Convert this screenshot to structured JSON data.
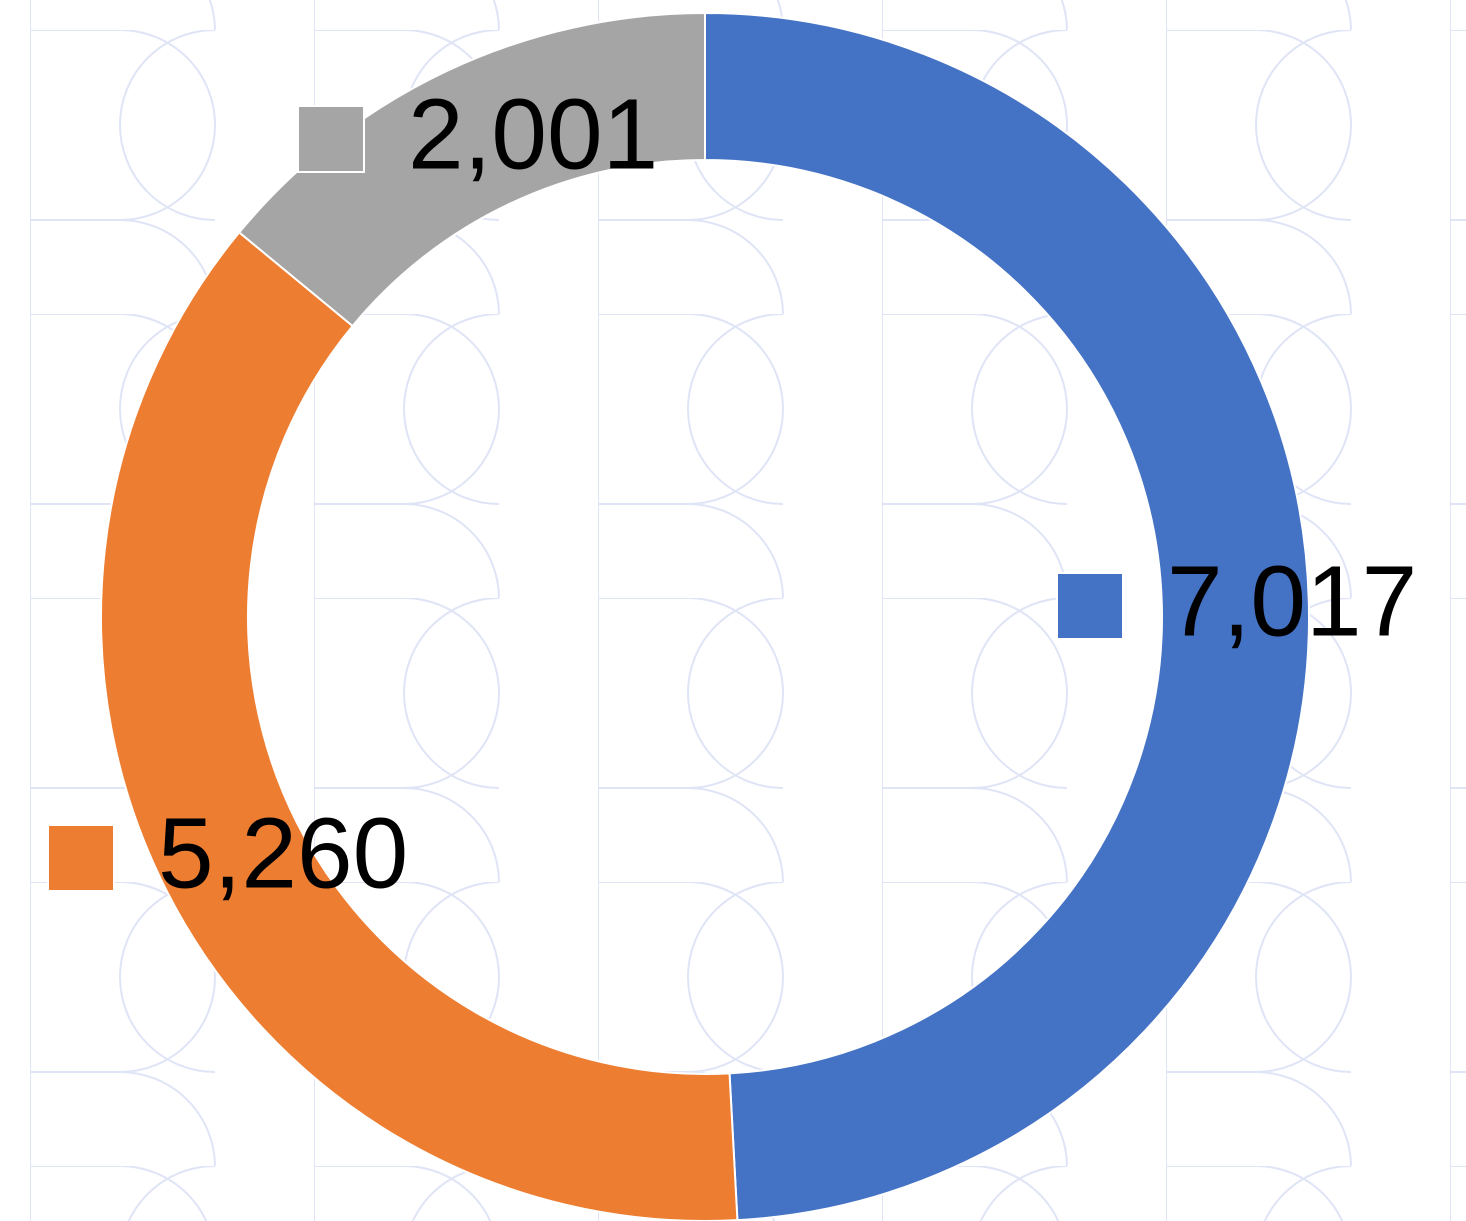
{
  "chart_data": {
    "type": "donut",
    "values": [
      7017,
      5260,
      2001
    ],
    "value_labels": [
      "7,017",
      "5,260",
      "2,001"
    ],
    "colors": [
      "#4472c4",
      "#ed7d31",
      "#a5a5a5"
    ]
  }
}
